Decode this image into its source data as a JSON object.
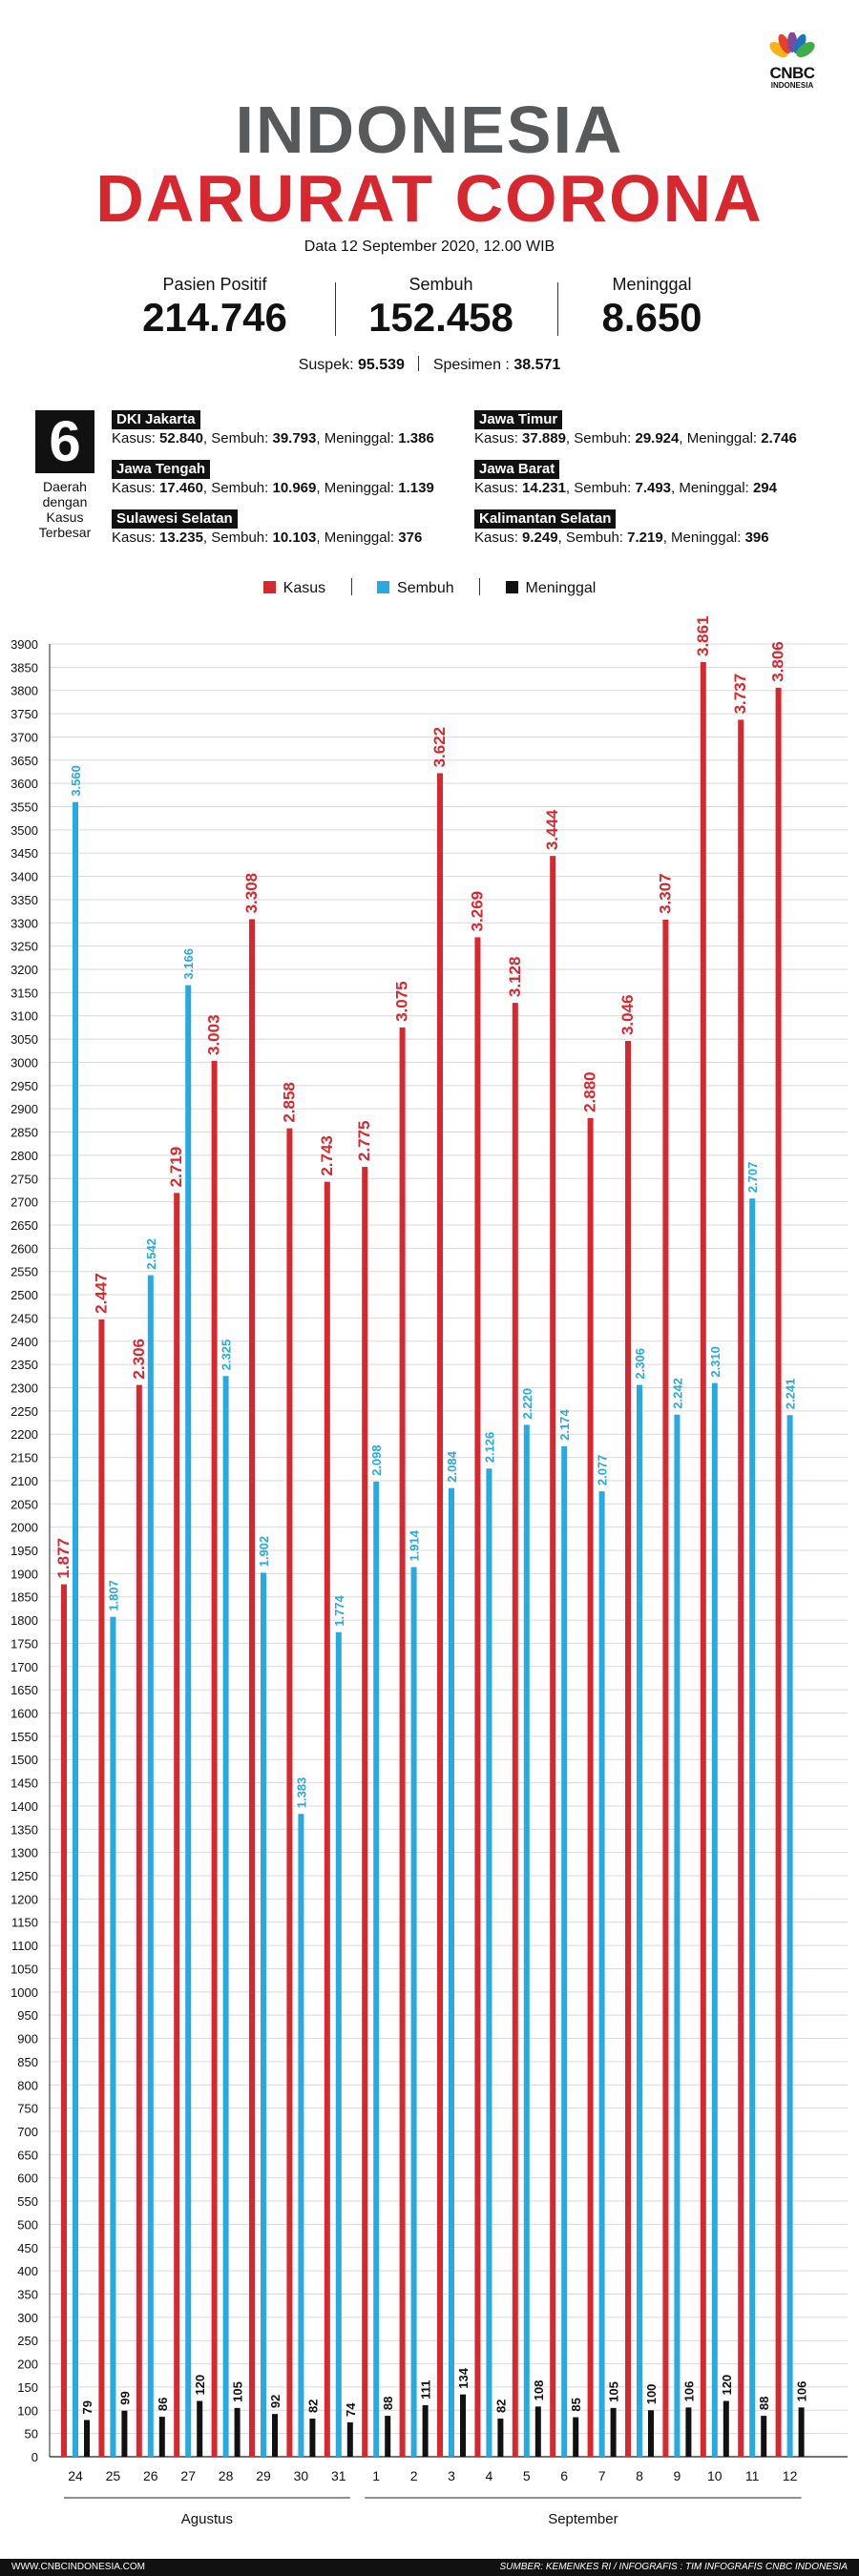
{
  "brand": {
    "logo_text": "CNBC",
    "logo_sub": "INDONESIA"
  },
  "header": {
    "title_line1": "INDONESIA",
    "title_line2": "DARURAT CORONA",
    "date": "Data 12 September 2020, 12.00 WIB"
  },
  "stats": {
    "positive_label": "Pasien Positif",
    "positive_value": "214.746",
    "recovered_label": "Sembuh",
    "recovered_value": "152.458",
    "deaths_label": "Meninggal",
    "deaths_value": "8.650",
    "suspect_label": "Suspek:",
    "suspect_value": "95.539",
    "specimen_label": "Spesimen :",
    "specimen_value": "38.571"
  },
  "regions": {
    "count": "6",
    "caption_lines": [
      "Daerah",
      "dengan",
      "Kasus",
      "Terbesar"
    ],
    "items": [
      {
        "name": "DKI Jakarta",
        "kasus": "52.840",
        "sembuh": "39.793",
        "meninggal": "1.386"
      },
      {
        "name": "Jawa Tengah",
        "kasus": "17.460",
        "sembuh": "10.969",
        "meninggal": "1.139"
      },
      {
        "name": "Sulawesi Selatan",
        "kasus": "13.235",
        "sembuh": "10.103",
        "meninggal": "376"
      },
      {
        "name": "Jawa Timur",
        "kasus": "37.889",
        "sembuh": "29.924",
        "meninggal": "2.746"
      },
      {
        "name": "Jawa Barat",
        "kasus": "14.231",
        "sembuh": "7.493",
        "meninggal": "294"
      },
      {
        "name": "Kalimantan Selatan",
        "kasus": "9.249",
        "sembuh": "7.219",
        "meninggal": "396"
      }
    ],
    "labels": {
      "kasus": "Kasus:",
      "sembuh": "Sembuh:",
      "meninggal": "Meninggal:"
    }
  },
  "colors": {
    "kasus": "#d7282f",
    "sembuh": "#27a9e1",
    "meninggal": "#111111"
  },
  "chart_data": {
    "type": "bar",
    "categories": [
      "24",
      "25",
      "26",
      "27",
      "28",
      "29",
      "30",
      "31",
      "1",
      "2",
      "3",
      "4",
      "5",
      "6",
      "7",
      "8",
      "9",
      "10",
      "11",
      "12"
    ],
    "groups": [
      {
        "label": "Agustus",
        "from": 0,
        "to": 7
      },
      {
        "label": "September",
        "from": 8,
        "to": 19
      }
    ],
    "series": [
      {
        "name": "Kasus",
        "values": [
          1877,
          2447,
          2306,
          2719,
          3003,
          3308,
          2858,
          2743,
          2775,
          3075,
          3622,
          3269,
          3128,
          3444,
          2880,
          3046,
          3307,
          3861,
          3737,
          3806
        ],
        "labels": [
          "1.877",
          "2.447",
          "2.306",
          "2.719",
          "3.003",
          "3.308",
          "2.858",
          "2.743",
          "2.775",
          "3.075",
          "3.622",
          "3.269",
          "3.128",
          "3.444",
          "2.880",
          "3.046",
          "3.307",
          "3.861",
          "3.737",
          "3.806"
        ]
      },
      {
        "name": "Sembuh",
        "values": [
          3560,
          1807,
          2542,
          3166,
          2325,
          1902,
          1383,
          1774,
          2098,
          1914,
          2084,
          2126,
          2220,
          2174,
          2077,
          2306,
          2242,
          2310,
          2707,
          2241
        ],
        "labels": [
          "3.560",
          "1.807",
          "2.542",
          "3.166",
          "2.325",
          "1.902",
          "1.383",
          "1.774",
          "2.098",
          "1.914",
          "2.084",
          "2.126",
          "2.220",
          "2.174",
          "2.077",
          "2.306",
          "2.242",
          "2.310",
          "2.707",
          "2.241"
        ]
      },
      {
        "name": "Meninggal",
        "values": [
          79,
          99,
          86,
          120,
          105,
          92,
          82,
          74,
          88,
          111,
          134,
          82,
          108,
          85,
          105,
          100,
          106,
          120,
          88,
          106
        ],
        "labels": [
          "79",
          "99",
          "86",
          "120",
          "105",
          "92",
          "82",
          "74",
          "88",
          "111",
          "134",
          "82",
          "108",
          "85",
          "105",
          "100",
          "106",
          "120",
          "88",
          "106"
        ]
      }
    ],
    "ylim": [
      0,
      3900
    ],
    "ytick_step": 50,
    "grid": true,
    "legend_position": "top-center",
    "xlabel": "",
    "ylabel": ""
  },
  "footer": {
    "website": "WWW.CNBCINDONESIA.COM",
    "source": "SUMBER: KEMENKES RI / INFOGRAFIS : TIM INFOGRAFIS CNBC INDONESIA"
  }
}
